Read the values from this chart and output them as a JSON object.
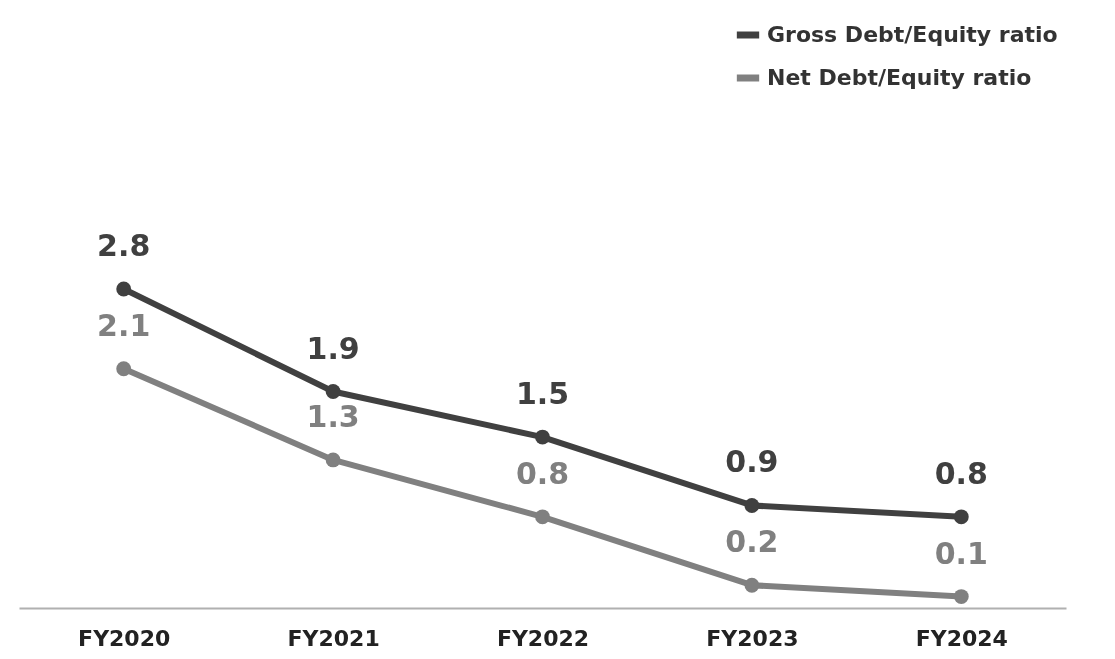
{
  "chart_data": {
    "type": "line",
    "categories": [
      "FY2020",
      "FY2021",
      "FY2022",
      "FY2023",
      "FY2024"
    ],
    "series": [
      {
        "name": "Gross Debt/Equity ratio",
        "color": "#404040",
        "values": [
          2.8,
          1.9,
          1.5,
          0.9,
          0.8
        ]
      },
      {
        "name": "Net Debt/Equity ratio",
        "color": "#808080",
        "values": [
          2.1,
          1.3,
          0.8,
          0.2,
          0.1
        ]
      }
    ],
    "data_labels": true,
    "marker": "circle",
    "line_style": "solid",
    "legend": "top right",
    "grid": false
  }
}
